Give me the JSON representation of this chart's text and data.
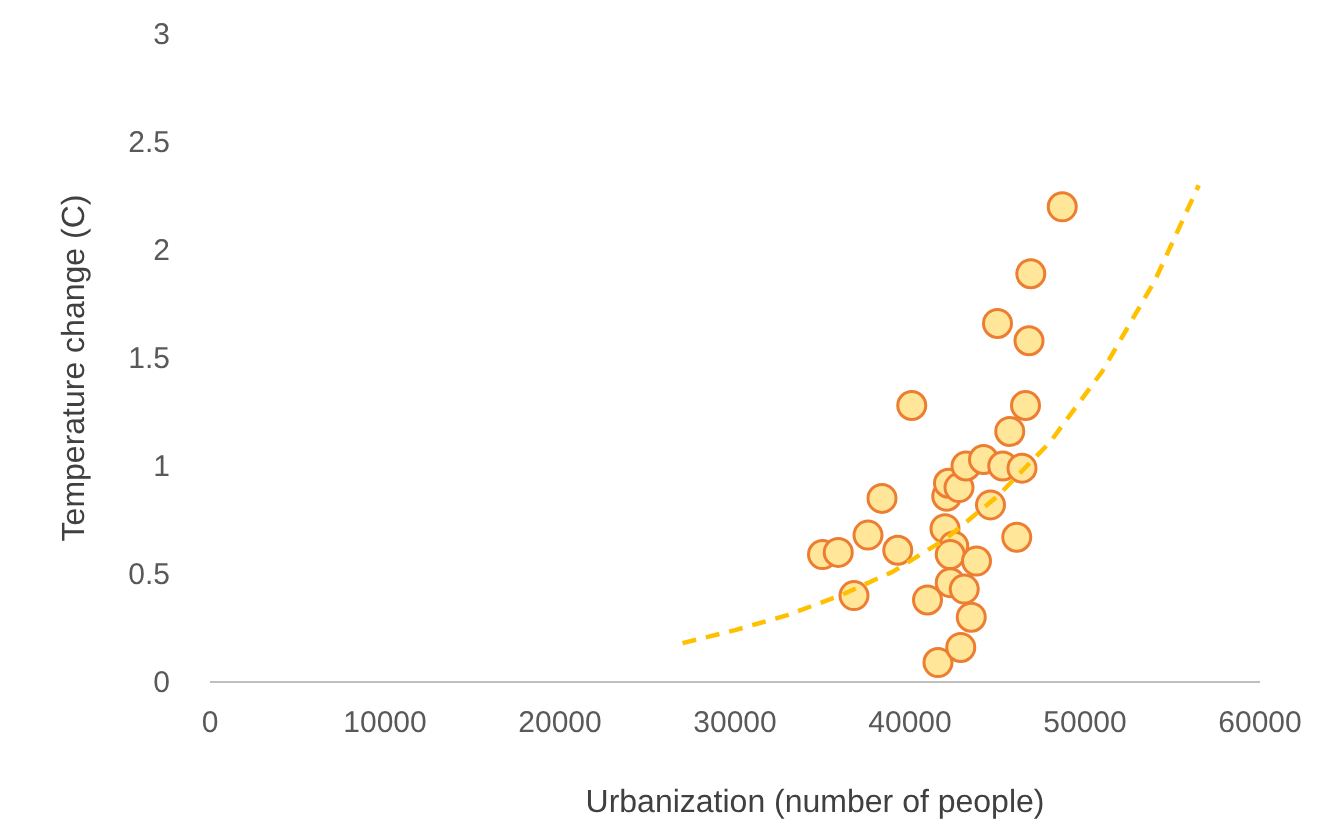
{
  "chart_data": {
    "type": "scatter",
    "xlabel": "Urbanization (number of people)",
    "ylabel": "Temperature change (C)",
    "xlim": [
      0,
      60000
    ],
    "xticks": [
      0,
      10000,
      20000,
      30000,
      40000,
      50000,
      60000
    ],
    "ylim": [
      0,
      3
    ],
    "yticks": [
      0,
      0.5,
      1,
      1.5,
      2,
      2.5,
      3
    ],
    "grid": false,
    "series": [
      {
        "color": "#ffe699",
        "marker": "circle",
        "x": [
          35000,
          35900,
          37600,
          38400,
          39300,
          36800,
          40100,
          41000,
          41600,
          42900,
          42300,
          43100,
          43500,
          42000,
          42500,
          42300,
          43800,
          42100,
          42200,
          42800,
          43200,
          44200,
          44600,
          45300,
          46400,
          45700,
          46600,
          46100,
          48700,
          46900,
          45000,
          46800
        ],
        "values": [
          0.59,
          0.6,
          0.68,
          0.85,
          0.61,
          0.4,
          1.28,
          0.38,
          0.09,
          0.16,
          0.46,
          0.43,
          0.3,
          0.71,
          0.63,
          0.59,
          0.56,
          0.86,
          0.92,
          0.9,
          1.0,
          1.03,
          0.82,
          1.0,
          0.99,
          1.16,
          1.28,
          0.67,
          2.2,
          1.89,
          1.66,
          1.58
        ]
      },
      {
        "type": "line",
        "color": "#ffc000",
        "line_style": "dashed",
        "marker": "none",
        "x": [
          27000,
          30000,
          33000,
          36000,
          39000,
          42000,
          45000,
          48000,
          51000,
          54000,
          56500
        ],
        "values": [
          0.18,
          0.24,
          0.31,
          0.4,
          0.51,
          0.66,
          0.86,
          1.11,
          1.44,
          1.86,
          2.3
        ]
      }
    ]
  }
}
